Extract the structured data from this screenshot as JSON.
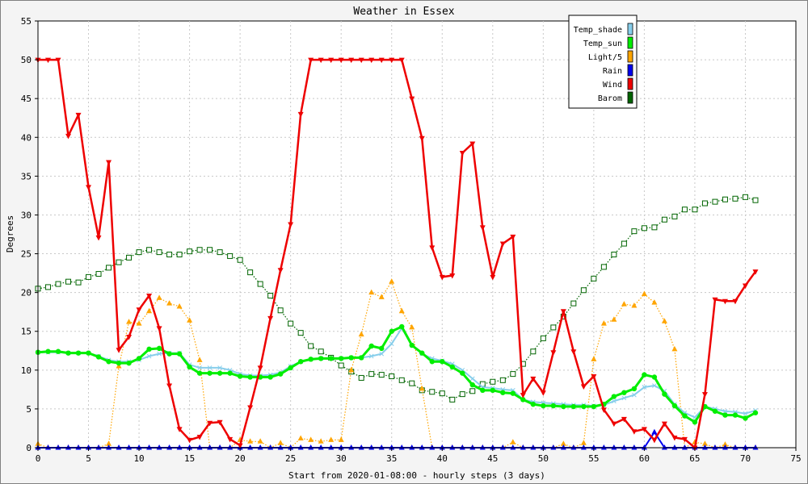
{
  "chart_data": {
    "type": "line",
    "title": "Weather in Essex",
    "xlabel": "Start from 2020-01-08:00 - hourly steps (3 days)",
    "ylabel": "Degrees",
    "xlim": [
      0,
      75
    ],
    "ylim": [
      0,
      55
    ],
    "x_ticks": [
      0,
      5,
      10,
      15,
      20,
      25,
      30,
      35,
      40,
      45,
      50,
      55,
      60,
      65,
      70,
      75
    ],
    "y_ticks": [
      0,
      5,
      10,
      15,
      20,
      25,
      30,
      35,
      40,
      45,
      50,
      55
    ],
    "grid": true,
    "legend_position": "top-right",
    "series": [
      {
        "name": "Temp_shade",
        "color": "#87ceeb",
        "marker": "x",
        "line": "solid",
        "values": [
          12.3,
          12.3,
          12.3,
          12.2,
          12.2,
          12.2,
          11.8,
          11.3,
          11.1,
          11.1,
          11.3,
          11.8,
          12.1,
          12.2,
          12.2,
          10.7,
          10.3,
          10.3,
          10.3,
          10.0,
          9.5,
          9.3,
          9.3,
          9.4,
          9.7,
          10.5,
          11.1,
          11.4,
          11.5,
          11.5,
          11.5,
          11.6,
          11.6,
          11.8,
          12.1,
          13.4,
          15.4,
          13.2,
          12.1,
          11.5,
          11.2,
          10.8,
          10.0,
          8.9,
          7.8,
          7.7,
          7.5,
          7.4,
          6.2,
          5.9,
          5.8,
          5.7,
          5.6,
          5.5,
          5.5,
          5.4,
          5.5,
          6.0,
          6.4,
          6.8,
          7.8,
          8.0,
          7.3,
          5.6,
          4.5,
          3.9,
          5.3,
          5.0,
          4.7,
          4.6,
          4.4,
          4.8
        ]
      },
      {
        "name": "Temp_sun",
        "color": "#00ee00",
        "marker": "circle",
        "line": "solid",
        "values": [
          12.3,
          12.4,
          12.4,
          12.2,
          12.2,
          12.2,
          11.7,
          11.1,
          10.9,
          10.9,
          11.5,
          12.7,
          12.8,
          12.1,
          12.1,
          10.4,
          9.6,
          9.6,
          9.6,
          9.6,
          9.2,
          9.1,
          9.1,
          9.1,
          9.5,
          10.3,
          11.1,
          11.4,
          11.5,
          11.5,
          11.5,
          11.6,
          11.6,
          13.1,
          12.8,
          15.0,
          15.6,
          13.2,
          12.2,
          11.1,
          11.1,
          10.4,
          9.6,
          8.1,
          7.4,
          7.4,
          7.1,
          7.0,
          6.2,
          5.6,
          5.4,
          5.4,
          5.3,
          5.3,
          5.3,
          5.3,
          5.6,
          6.6,
          7.1,
          7.6,
          9.4,
          9.1,
          6.9,
          5.4,
          4.1,
          3.3,
          5.3,
          4.7,
          4.2,
          4.2,
          3.8,
          4.5
        ]
      },
      {
        "name": "Light/5",
        "color": "#ffa500",
        "marker": "triangle",
        "line": "dotted",
        "values": [
          0.5,
          0,
          0,
          0,
          0,
          0,
          0,
          0.5,
          10.5,
          16.2,
          16.0,
          17.6,
          19.3,
          18.6,
          18.2,
          16.4,
          11.3,
          0,
          0,
          0,
          1.0,
          0.8,
          0.8,
          0,
          0.6,
          0,
          1.2,
          1.0,
          0.8,
          1.0,
          1.0,
          10.0,
          14.6,
          20.0,
          19.4,
          21.4,
          17.6,
          15.5,
          7.6,
          0,
          0,
          0,
          0,
          0,
          0,
          0,
          0,
          0.7,
          0,
          0,
          0,
          0,
          0.5,
          0,
          0.6,
          11.4,
          16.0,
          16.5,
          18.5,
          18.3,
          19.8,
          18.7,
          16.3,
          12.7,
          0,
          0.7,
          0.5,
          0,
          0.4,
          0,
          0,
          0
        ]
      },
      {
        "name": "Rain",
        "color": "#0000ee",
        "marker": "triangle",
        "line": "solid",
        "values": [
          0,
          0,
          0,
          0,
          0,
          0,
          0,
          0,
          0,
          0,
          0,
          0,
          0,
          0,
          0,
          0,
          0,
          0,
          0,
          0,
          0,
          0,
          0,
          0,
          0,
          0,
          0,
          0,
          0,
          0,
          0,
          0,
          0,
          0,
          0,
          0,
          0,
          0,
          0,
          0,
          0,
          0,
          0,
          0,
          0,
          0,
          0,
          0,
          0,
          0,
          0,
          0,
          0,
          0,
          0,
          0,
          0,
          0,
          0,
          0,
          0,
          2.0,
          0,
          0,
          0,
          0,
          0,
          0,
          0,
          0,
          0,
          0
        ]
      },
      {
        "name": "Wind",
        "color": "#ee0000",
        "marker": "triangle-down",
        "line": "solid",
        "values": [
          50,
          50,
          50,
          40.2,
          42.9,
          33.6,
          27.1,
          36.8,
          12.6,
          14.3,
          17.8,
          19.6,
          15.4,
          8.0,
          2.4,
          1.0,
          1.4,
          3.2,
          3.3,
          1.1,
          0.3,
          5.2,
          10.3,
          16.7,
          22.9,
          28.8,
          43.0,
          50,
          50,
          50,
          50,
          50,
          50,
          50,
          50,
          50,
          50,
          45.0,
          39.9,
          25.8,
          22.0,
          22.2,
          38.0,
          39.2,
          28.4,
          22.0,
          26.3,
          27.2,
          6.8,
          8.9,
          7.1,
          12.3,
          17.6,
          12.4,
          7.9,
          9.2,
          4.9,
          3.1,
          3.7,
          2.1,
          2.4,
          1.0,
          3.1,
          1.3,
          1.1,
          0,
          6.9,
          19.1,
          18.9,
          18.9,
          20.9,
          22.7
        ]
      },
      {
        "name": "Barom",
        "color": "#006400",
        "marker": "square",
        "line": "dotted",
        "values": [
          20.5,
          20.7,
          21.1,
          21.4,
          21.3,
          22.0,
          22.4,
          23.2,
          23.9,
          24.5,
          25.2,
          25.5,
          25.2,
          24.9,
          24.9,
          25.3,
          25.5,
          25.5,
          25.2,
          24.7,
          24.2,
          22.6,
          21.1,
          19.6,
          17.7,
          16.0,
          14.8,
          13.1,
          12.4,
          11.6,
          10.6,
          9.8,
          9.0,
          9.5,
          9.4,
          9.2,
          8.7,
          8.3,
          7.4,
          7.2,
          7.0,
          6.2,
          6.9,
          7.3,
          8.2,
          8.5,
          8.7,
          9.5,
          10.8,
          12.4,
          14.1,
          15.5,
          16.9,
          18.6,
          20.3,
          21.8,
          23.3,
          24.9,
          26.3,
          27.9,
          28.3,
          28.4,
          29.4,
          29.8,
          30.7,
          30.7,
          31.5,
          31.7,
          32.0,
          32.1,
          32.3,
          31.9
        ]
      }
    ]
  }
}
